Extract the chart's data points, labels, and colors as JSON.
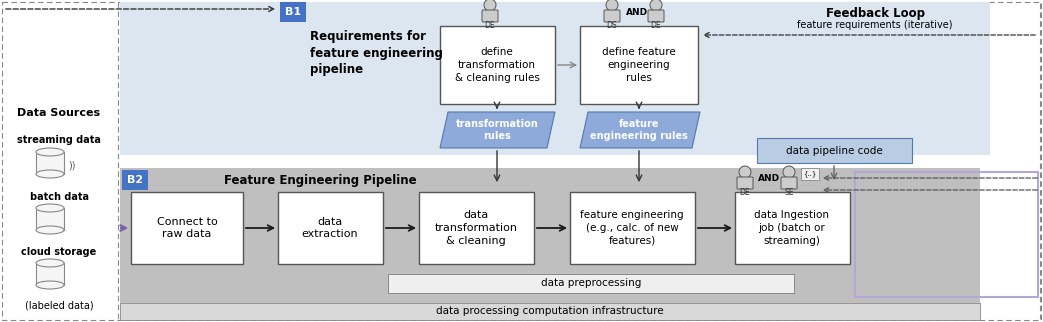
{
  "fig_width": 10.43,
  "fig_height": 3.22,
  "dpi": 100,
  "colors": {
    "light_blue_fill": "#dce6f1",
    "mid_blue_fill": "#8eaadb",
    "b1_badge": "#4472c4",
    "b2_badge": "#4472c4",
    "white_box": "#ffffff",
    "gray_fill": "#bfbfbf",
    "infra_fill": "#d9d9d9",
    "preproc_fill": "#f2f2f2",
    "arrow_dark": "#1a1a1a",
    "arrow_purple": "#7b5ea7",
    "arrow_gray": "#595959",
    "dashed_border": "#808080",
    "light_purple_border": "#b4a7d6",
    "pipeline_code_fill": "#b8cce4"
  },
  "texts": {
    "b1_label": "B1",
    "b1_title": "Requirements for\nfeature engineering\npipeline",
    "b2_label": "B2",
    "b2_title": "Feature Engineering Pipeline",
    "feedback_title": "Feedback Loop",
    "feedback_sub": "feature requirements (iterative)",
    "data_sources_title": "Data Sources",
    "streaming_label": "streaming data",
    "batch_label": "batch data",
    "cloud_label": "cloud storage",
    "labeled_label": "(labeled data)",
    "bottom_label": "data processing computation infrastructure",
    "define_transform": "define\ntransformation\n& cleaning rules",
    "define_feature": "define feature\nengineering\nrules",
    "transform_rules": "transformation\nrules",
    "feature_eng_rules": "feature\nengineering rules",
    "data_pipeline_code": "data pipeline code",
    "connect_raw": "Connect to\nraw data",
    "data_extraction": "data\nextraction",
    "data_transform": "data\ntransformation\n& cleaning",
    "feature_engineering": "feature engineering\n(e.g., calc. of new\nfeatures)",
    "data_ingestion": "data Ingestion\njob (batch or\nstreaming)",
    "data_preprocessing": "data preprocessing"
  }
}
